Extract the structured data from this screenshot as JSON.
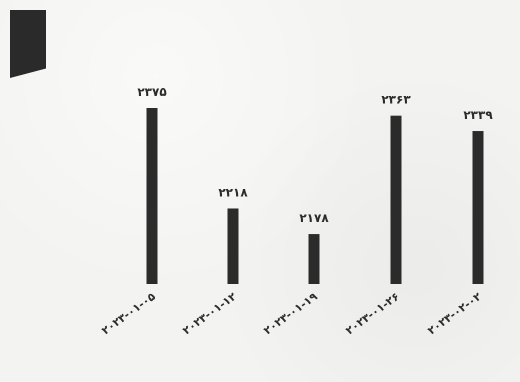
{
  "chart_data": {
    "type": "bar",
    "categories": [
      "۲۰۲۳-۰۱-۰۵",
      "۲۰۲۳-۰۱-۱۲",
      "۲۰۲۳-۰۱-۱۹",
      "۲۰۲۳-۰۱-۲۶",
      "۲۰۲۳-۰۲-۰۲"
    ],
    "values": [
      2375,
      2218,
      2178,
      2363,
      2339
    ],
    "value_labels": [
      "۲۳۷۵",
      "۲۲۱۸",
      "۲۱۷۸",
      "۲۳۶۳",
      "۲۳۳۹"
    ],
    "title": "",
    "xlabel": "",
    "ylabel": "",
    "ylim": [
      2100,
      2400
    ],
    "grid": false,
    "legend": "none",
    "bar_color": "#2b2b2b"
  }
}
